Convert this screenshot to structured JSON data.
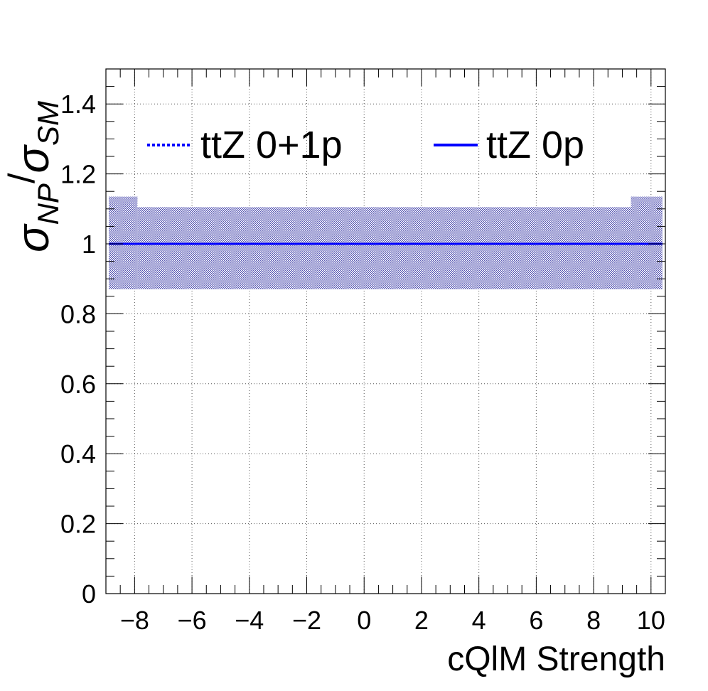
{
  "chart_data": {
    "type": "line",
    "xlabel": "cQlM Strength",
    "ylabel": {
      "numerator_symbol": "σ",
      "numerator_subscript": "NP",
      "separator": "/",
      "denominator_symbol": "σ",
      "denominator_subscript": "SM"
    },
    "xlim": [
      -9,
      10.5
    ],
    "ylim": [
      0,
      1.5
    ],
    "x_ticks": [
      -8,
      -6,
      -4,
      -2,
      0,
      2,
      4,
      6,
      8,
      10
    ],
    "x_tick_labels": [
      "−8",
      "−6",
      "−4",
      "−2",
      "0",
      "2",
      "4",
      "6",
      "8",
      "10"
    ],
    "y_ticks": [
      0,
      0.2,
      0.4,
      0.6,
      0.8,
      1,
      1.2,
      1.4
    ],
    "y_tick_labels": [
      "0",
      "0.2",
      "0.4",
      "0.6",
      "0.8",
      "1",
      "1.2",
      "1.4"
    ],
    "grid": true,
    "legend_position": "top",
    "series": [
      {
        "name": "ttZ 0+1p",
        "style": "dotted",
        "color": "#0000ff",
        "x": [
          -8,
          -6,
          -4,
          -2,
          0,
          2,
          4,
          6,
          8,
          10
        ],
        "y": [
          1,
          1,
          1,
          1,
          1,
          1,
          1,
          1,
          1,
          1
        ]
      },
      {
        "name": "ttZ 0p",
        "style": "solid",
        "color": "#0000ff",
        "x": [
          -8,
          -6,
          -4,
          -2,
          0,
          2,
          4,
          6,
          8,
          10
        ],
        "y": [
          1,
          1,
          1,
          1,
          1,
          1,
          1,
          1,
          1,
          1
        ]
      }
    ],
    "uncertainty_band": {
      "color": "#5a5ab4",
      "segments": [
        {
          "x0": -8.9,
          "x1": -7.9,
          "low": 0.87,
          "high": 1.135
        },
        {
          "x0": -7.9,
          "x1": 9.3,
          "low": 0.87,
          "high": 1.105
        },
        {
          "x0": 9.3,
          "x1": 10.4,
          "low": 0.87,
          "high": 1.135
        }
      ]
    }
  }
}
